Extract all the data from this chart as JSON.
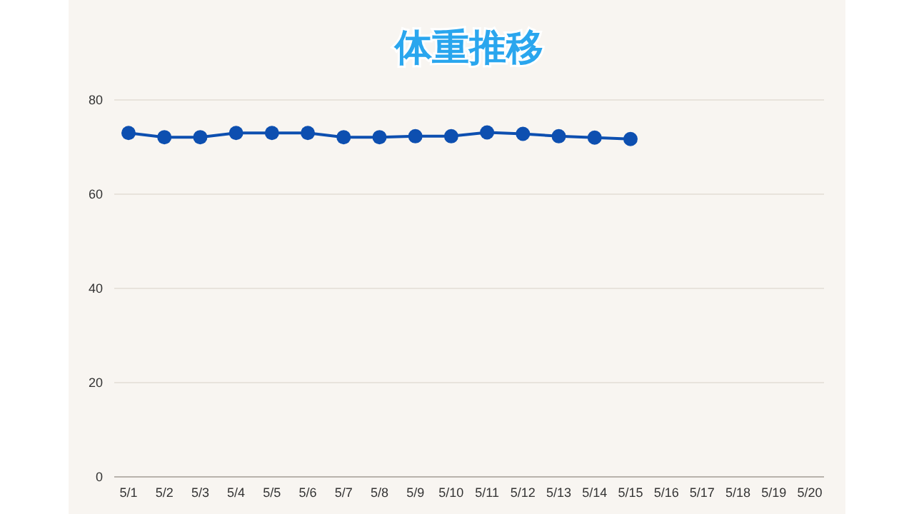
{
  "chart_data": {
    "type": "line",
    "title": "体重推移",
    "categories": [
      "5/1",
      "5/2",
      "5/3",
      "5/4",
      "5/5",
      "5/6",
      "5/7",
      "5/8",
      "5/9",
      "5/10",
      "5/11",
      "5/12",
      "5/13",
      "5/14",
      "5/15",
      "5/16",
      "5/17",
      "5/18",
      "5/19",
      "5/20"
    ],
    "series": [
      {
        "color": "#0d4fb0",
        "values": [
          73.0,
          72.1,
          72.1,
          73.0,
          73.0,
          73.0,
          72.1,
          72.1,
          72.3,
          72.3,
          73.1,
          72.8,
          72.3,
          72.0,
          71.7,
          null,
          null,
          null,
          null,
          null
        ]
      }
    ],
    "ylim": [
      0,
      80
    ],
    "yticks": [
      0,
      20,
      40,
      60,
      80
    ],
    "grid": "y",
    "marker": "circle",
    "line_style": "solid"
  }
}
